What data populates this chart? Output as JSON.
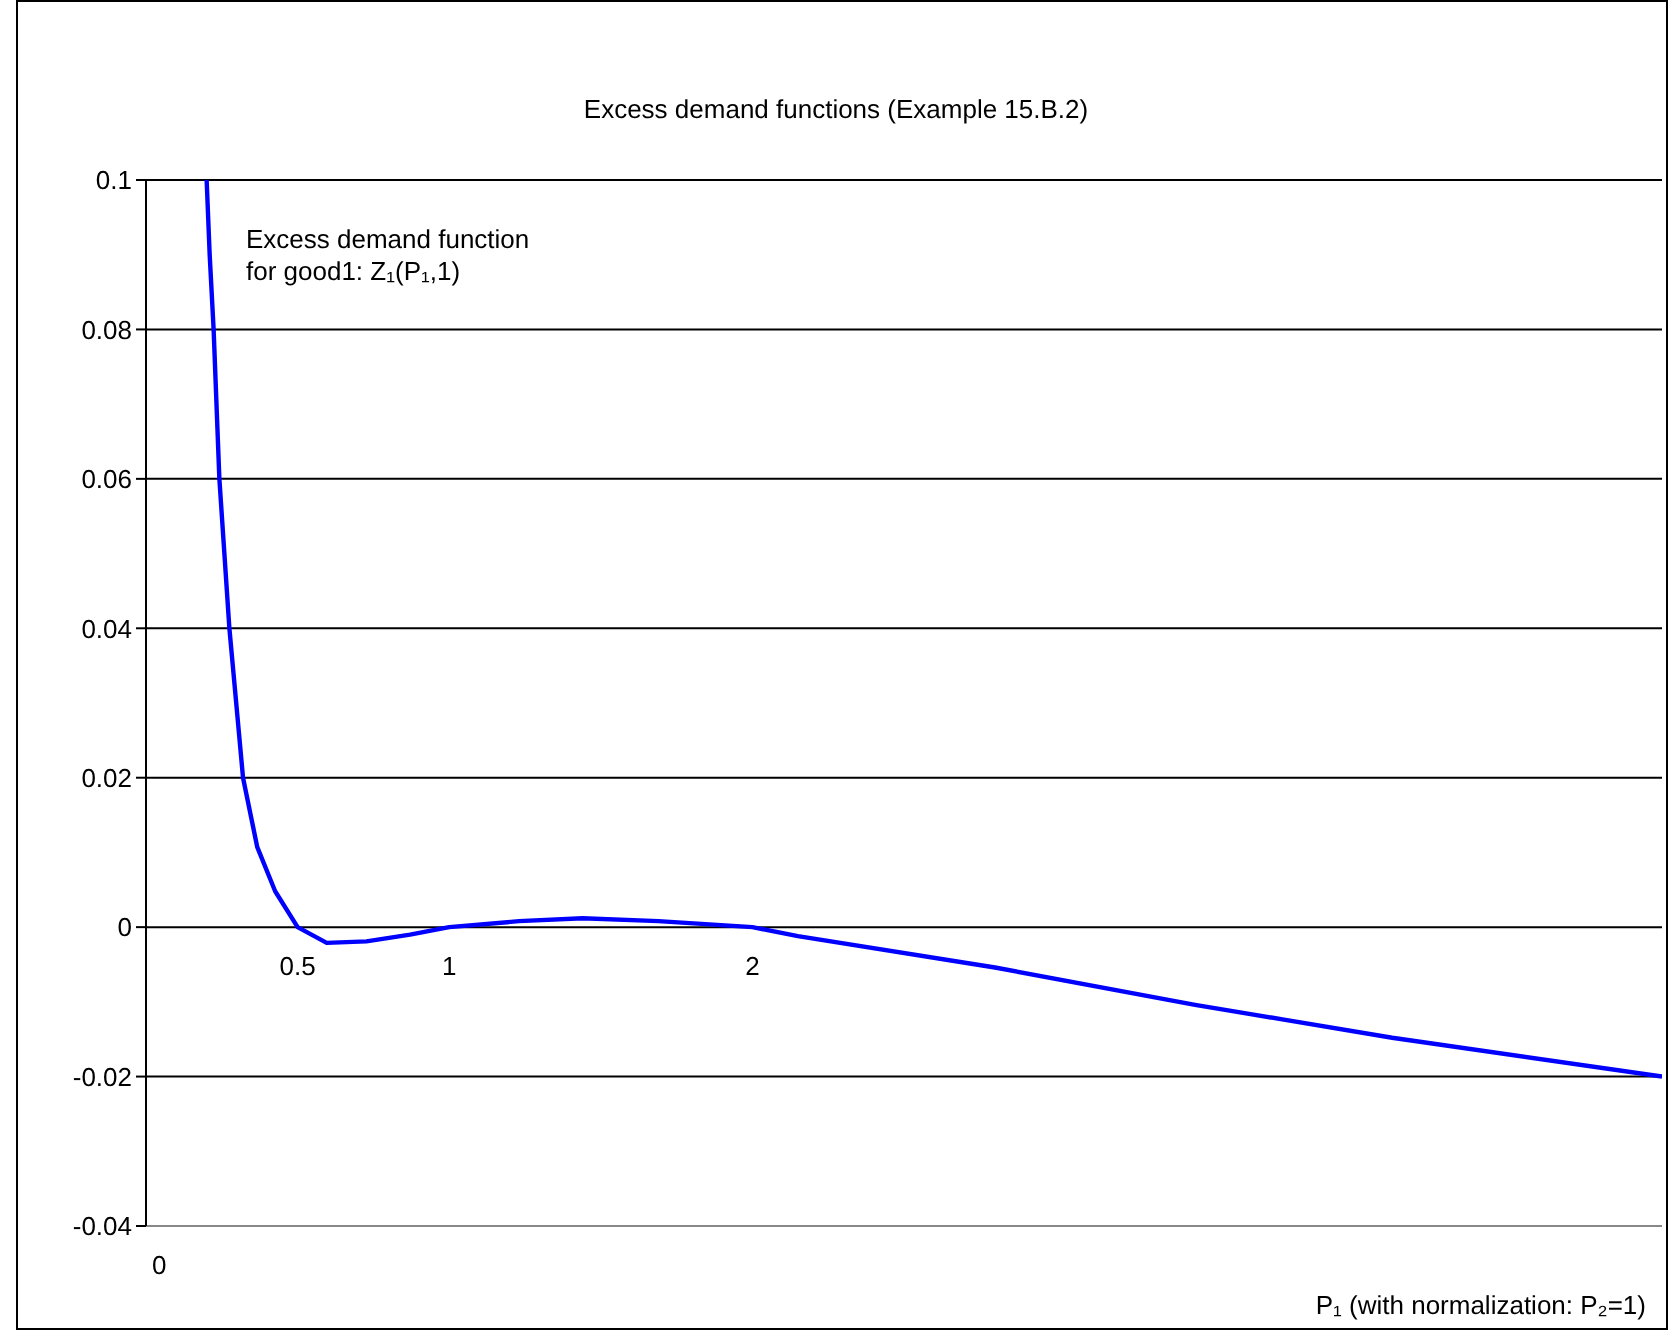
{
  "chart_data": {
    "type": "line",
    "title": "Excess demand functions (Example 15.B.2)",
    "xlabel": "P₁ (with normalization: P₂=1)",
    "annotations": [
      "Excess demand function\nfor good1: Z₁(P₁,1)",
      "0"
    ],
    "x": [
      0.2,
      0.21,
      0.223,
      0.242,
      0.275,
      0.32,
      0.367,
      0.426,
      0.5,
      0.596,
      0.727,
      0.871,
      1.0,
      1.23,
      1.44,
      1.69,
      2.0,
      2.15,
      2.8,
      3.46,
      4.11,
      5.0
    ],
    "series": [
      {
        "color": "#0000ff",
        "values": [
          0.1,
          0.09,
          0.08,
          0.06,
          0.04,
          0.02,
          0.0107,
          0.0048,
          0,
          -0.0021,
          -0.0019,
          -0.001,
          0,
          0.0008,
          0.0012,
          0.0008,
          0,
          -0.0012,
          -0.0054,
          -0.0104,
          -0.0148,
          -0.02
        ]
      }
    ],
    "xlim": [
      0,
      5
    ],
    "xticks": [
      0.5,
      1,
      2
    ],
    "ylim": [
      -0.04,
      0.1
    ],
    "yticks": [
      -0.04,
      -0.02,
      0,
      0.02,
      0.04,
      0.06,
      0.08,
      0.1
    ],
    "grid": "y"
  }
}
